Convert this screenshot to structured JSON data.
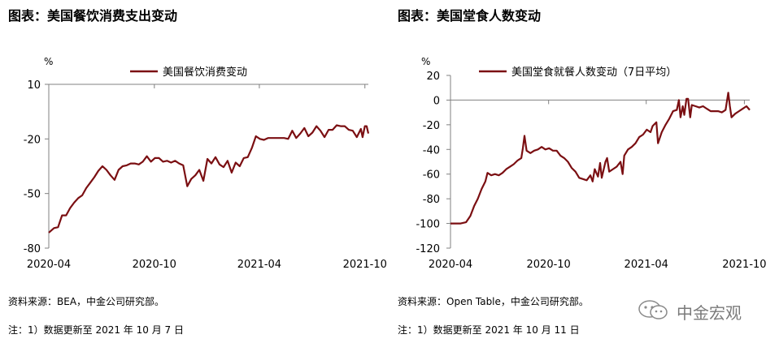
{
  "charts": [
    {
      "title": "图表：美国餐饮消费支出变动",
      "source": "资料来源：BEA，中金公司研究部。",
      "note": "注：1）数据更新至 2021 年 10 月 7 日",
      "chart_data": {
        "type": "line",
        "unit": "%",
        "ylim": [
          -80,
          10
        ],
        "yticks": [
          10,
          -20,
          -50,
          -80
        ],
        "xlim": [
          "2020-04-01",
          "2021-10-07"
        ],
        "xticks": [
          "2020-04",
          "2020-10",
          "2021-04",
          "2021-10"
        ],
        "xtick_dates": [
          "2020-04-01",
          "2020-10-01",
          "2021-04-01",
          "2021-10-01"
        ],
        "legend_position": "top",
        "grid": false,
        "color": "#7b0f12",
        "series": [
          {
            "name": "美国餐饮消费变动",
            "points": [
              [
                "2020-04-01",
                -71.5
              ],
              [
                "2020-04-10",
                -69
              ],
              [
                "2020-04-17",
                -68.5
              ],
              [
                "2020-04-24",
                -62
              ],
              [
                "2020-05-01",
                -62
              ],
              [
                "2020-05-08",
                -58
              ],
              [
                "2020-05-15",
                -55
              ],
              [
                "2020-05-22",
                -52.5
              ],
              [
                "2020-05-29",
                -51
              ],
              [
                "2020-06-05",
                -47
              ],
              [
                "2020-06-12",
                -44
              ],
              [
                "2020-06-19",
                -41
              ],
              [
                "2020-06-26",
                -37.5
              ],
              [
                "2020-07-03",
                -35
              ],
              [
                "2020-07-10",
                -37
              ],
              [
                "2020-07-17",
                -40
              ],
              [
                "2020-07-24",
                -42.5
              ],
              [
                "2020-07-31",
                -37
              ],
              [
                "2020-08-07",
                -35
              ],
              [
                "2020-08-14",
                -34.5
              ],
              [
                "2020-08-21",
                -33.5
              ],
              [
                "2020-08-28",
                -33.5
              ],
              [
                "2020-09-04",
                -34
              ],
              [
                "2020-09-11",
                -32.5
              ],
              [
                "2020-09-18",
                -29.5
              ],
              [
                "2020-09-25",
                -32.5
              ],
              [
                "2020-10-02",
                -30.5
              ],
              [
                "2020-10-09",
                -30.5
              ],
              [
                "2020-10-16",
                -32.5
              ],
              [
                "2020-10-23",
                -32
              ],
              [
                "2020-10-30",
                -33
              ],
              [
                "2020-11-06",
                -32
              ],
              [
                "2020-11-13",
                -33.5
              ],
              [
                "2020-11-20",
                -34.5
              ],
              [
                "2020-11-27",
                -46
              ],
              [
                "2020-12-04",
                -42
              ],
              [
                "2020-12-11",
                -40
              ],
              [
                "2020-12-18",
                -37
              ],
              [
                "2020-12-25",
                -43
              ],
              [
                "2021-01-01",
                -31
              ],
              [
                "2021-01-08",
                -33.5
              ],
              [
                "2021-01-15",
                -30
              ],
              [
                "2021-01-22",
                -34
              ],
              [
                "2021-01-29",
                -35.5
              ],
              [
                "2021-02-05",
                -32
              ],
              [
                "2021-02-12",
                -38.5
              ],
              [
                "2021-02-19",
                -33
              ],
              [
                "2021-02-26",
                -35
              ],
              [
                "2021-03-05",
                -30.5
              ],
              [
                "2021-03-12",
                -30
              ],
              [
                "2021-03-19",
                -25
              ],
              [
                "2021-03-26",
                -18.5
              ],
              [
                "2021-04-02",
                -20
              ],
              [
                "2021-04-09",
                -20.5
              ],
              [
                "2021-04-16",
                -19.5
              ],
              [
                "2021-04-23",
                -19.5
              ],
              [
                "2021-04-30",
                -19.5
              ],
              [
                "2021-05-07",
                -19.5
              ],
              [
                "2021-05-14",
                -19.5
              ],
              [
                "2021-05-21",
                -20
              ],
              [
                "2021-05-28",
                -15.5
              ],
              [
                "2021-06-04",
                -19.5
              ],
              [
                "2021-06-11",
                -17
              ],
              [
                "2021-06-18",
                -14
              ],
              [
                "2021-06-25",
                -18.5
              ],
              [
                "2021-07-02",
                -16.5
              ],
              [
                "2021-07-09",
                -13
              ],
              [
                "2021-07-16",
                -15.5
              ],
              [
                "2021-07-23",
                -19
              ],
              [
                "2021-07-30",
                -15
              ],
              [
                "2021-08-06",
                -15
              ],
              [
                "2021-08-13",
                -12.5
              ],
              [
                "2021-08-20",
                -13
              ],
              [
                "2021-08-27",
                -13
              ],
              [
                "2021-09-03",
                -15
              ],
              [
                "2021-09-10",
                -15.5
              ],
              [
                "2021-09-17",
                -19
              ],
              [
                "2021-09-24",
                -14.5
              ],
              [
                "2021-09-27",
                -19
              ],
              [
                "2021-10-01",
                -13
              ],
              [
                "2021-10-04",
                -13
              ],
              [
                "2021-10-07",
                -17
              ]
            ]
          }
        ]
      }
    },
    {
      "title": "图表：美国堂食人数变动",
      "source": "资料来源：Open Table，中金公司研究部。",
      "note": "注：1）数据更新至 2021 年 10 月 11 日",
      "chart_data": {
        "type": "line",
        "unit": "%",
        "ylim": [
          -120,
          20
        ],
        "yticks": [
          20,
          0,
          -20,
          -40,
          -60,
          -80,
          -100,
          -120
        ],
        "xlim": [
          "2020-04-01",
          "2021-10-11"
        ],
        "xticks": [
          "2020-04",
          "2020-10",
          "2021-04",
          "2021-10"
        ],
        "xtick_dates": [
          "2020-04-01",
          "2020-10-01",
          "2021-04-01",
          "2021-10-01"
        ],
        "legend_position": "top",
        "grid": false,
        "color": "#7b0f12",
        "series": [
          {
            "name": "美国堂食就餐人数变动（7日平均）",
            "points": [
              [
                "2020-04-01",
                -100
              ],
              [
                "2020-04-20",
                -100
              ],
              [
                "2020-04-30",
                -99
              ],
              [
                "2020-05-08",
                -94
              ],
              [
                "2020-05-15",
                -86
              ],
              [
                "2020-05-22",
                -80
              ],
              [
                "2020-05-29",
                -72
              ],
              [
                "2020-06-05",
                -66
              ],
              [
                "2020-06-09",
                -59
              ],
              [
                "2020-06-16",
                -61
              ],
              [
                "2020-06-23",
                -60
              ],
              [
                "2020-06-30",
                -61
              ],
              [
                "2020-07-07",
                -59
              ],
              [
                "2020-07-14",
                -56
              ],
              [
                "2020-07-21",
                -54
              ],
              [
                "2020-07-28",
                -52
              ],
              [
                "2020-08-04",
                -49
              ],
              [
                "2020-08-11",
                -47
              ],
              [
                "2020-08-14",
                -39
              ],
              [
                "2020-08-17",
                -29
              ],
              [
                "2020-08-21",
                -41
              ],
              [
                "2020-08-28",
                -43
              ],
              [
                "2020-09-04",
                -41
              ],
              [
                "2020-09-11",
                -40
              ],
              [
                "2020-09-18",
                -38
              ],
              [
                "2020-09-25",
                -40
              ],
              [
                "2020-10-02",
                -39
              ],
              [
                "2020-10-09",
                -41
              ],
              [
                "2020-10-16",
                -41
              ],
              [
                "2020-10-23",
                -45
              ],
              [
                "2020-10-30",
                -47
              ],
              [
                "2020-11-06",
                -50
              ],
              [
                "2020-11-13",
                -55
              ],
              [
                "2020-11-20",
                -58
              ],
              [
                "2020-11-27",
                -63
              ],
              [
                "2020-12-04",
                -64
              ],
              [
                "2020-12-11",
                -65
              ],
              [
                "2020-12-18",
                -61
              ],
              [
                "2020-12-22",
                -66
              ],
              [
                "2020-12-26",
                -56
              ],
              [
                "2021-01-01",
                -62
              ],
              [
                "2021-01-05",
                -51
              ],
              [
                "2021-01-08",
                -63
              ],
              [
                "2021-01-15",
                -50
              ],
              [
                "2021-01-18",
                -47
              ],
              [
                "2021-01-22",
                -58
              ],
              [
                "2021-01-29",
                -56
              ],
              [
                "2021-02-05",
                -54
              ],
              [
                "2021-02-12",
                -50
              ],
              [
                "2021-02-16",
                -60
              ],
              [
                "2021-02-19",
                -45
              ],
              [
                "2021-02-26",
                -40
              ],
              [
                "2021-03-05",
                -38
              ],
              [
                "2021-03-12",
                -35
              ],
              [
                "2021-03-19",
                -30
              ],
              [
                "2021-03-26",
                -28
              ],
              [
                "2021-04-02",
                -24
              ],
              [
                "2021-04-09",
                -26
              ],
              [
                "2021-04-13",
                -21
              ],
              [
                "2021-04-20",
                -18
              ],
              [
                "2021-04-23",
                -35
              ],
              [
                "2021-04-30",
                -26
              ],
              [
                "2021-05-07",
                -20
              ],
              [
                "2021-05-14",
                -15
              ],
              [
                "2021-05-21",
                -9
              ],
              [
                "2021-05-28",
                -8
              ],
              [
                "2021-06-01",
                0
              ],
              [
                "2021-06-04",
                -14
              ],
              [
                "2021-06-08",
                -5
              ],
              [
                "2021-06-11",
                -12
              ],
              [
                "2021-06-15",
                1
              ],
              [
                "2021-06-18",
                1
              ],
              [
                "2021-06-22",
                -14
              ],
              [
                "2021-06-25",
                -4
              ],
              [
                "2021-07-02",
                -5
              ],
              [
                "2021-07-09",
                -6
              ],
              [
                "2021-07-16",
                -5
              ],
              [
                "2021-07-23",
                -7
              ],
              [
                "2021-07-30",
                -9
              ],
              [
                "2021-08-06",
                -9
              ],
              [
                "2021-08-13",
                -9
              ],
              [
                "2021-08-20",
                -10
              ],
              [
                "2021-08-27",
                -8
              ],
              [
                "2021-09-01",
                6
              ],
              [
                "2021-09-04",
                -5
              ],
              [
                "2021-09-07",
                -14
              ],
              [
                "2021-09-14",
                -11
              ],
              [
                "2021-09-21",
                -9
              ],
              [
                "2021-09-28",
                -7
              ],
              [
                "2021-10-05",
                -5
              ],
              [
                "2021-10-11",
                -8
              ]
            ]
          }
        ]
      }
    }
  ],
  "watermark": {
    "icon": "wechat-icon",
    "text": "中金宏观",
    "color": "#7a7a7a"
  }
}
